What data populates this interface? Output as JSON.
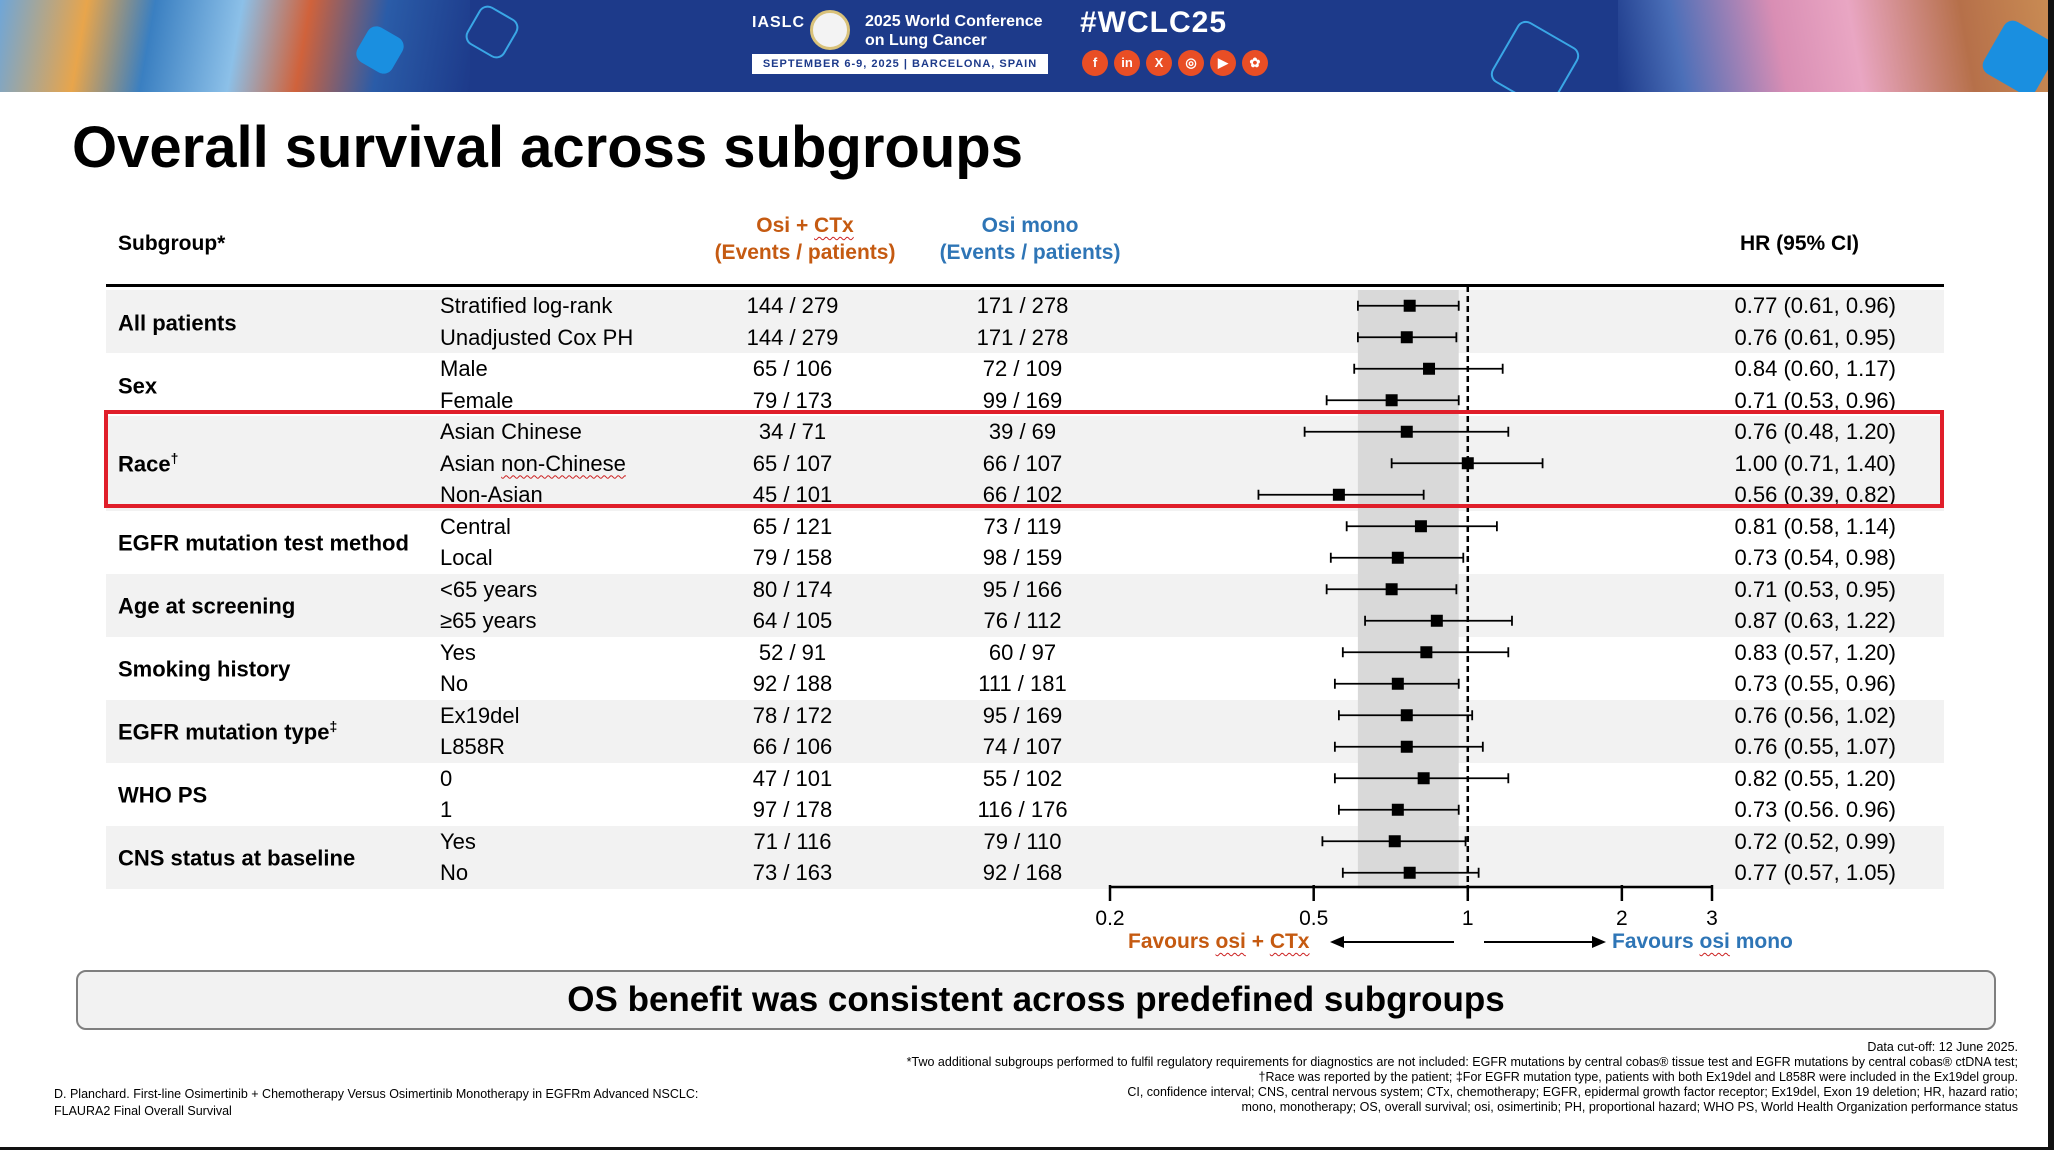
{
  "banner": {
    "org": "IASLC",
    "conference_title": "2025 World Conference on Lung Cancer",
    "conference_date": "SEPTEMBER 6-9, 2025  |  BARCELONA, SPAIN",
    "hashtag": "#WCLC25",
    "social_icons": [
      "facebook-icon",
      "linkedin-icon",
      "x-icon",
      "instagram-icon",
      "youtube-icon",
      "wechat-icon"
    ],
    "social_glyphs": [
      "f",
      "in",
      "X",
      "◎",
      "▶",
      "✿"
    ]
  },
  "title": "Overall survival across subgroups",
  "table_headers": {
    "subgroup": "Subgroup*",
    "osi_ctx_line1_a": "Osi + ",
    "osi_ctx_line1_b": "CTx",
    "osi_ctx_line2": "(Events / patients)",
    "osi_mono_line1": "Osi mono",
    "osi_mono_line2": "(Events / patients)",
    "hr": "HR (95% CI)"
  },
  "groups": [
    {
      "name": "All patients",
      "sup": ""
    },
    {
      "name": "Sex",
      "sup": ""
    },
    {
      "name": "Race",
      "sup": "†"
    },
    {
      "name": "EGFR mutation test method",
      "sup": ""
    },
    {
      "name": "Age at screening",
      "sup": ""
    },
    {
      "name": "Smoking history",
      "sup": ""
    },
    {
      "name": "EGFR mutation type",
      "sup": "‡"
    },
    {
      "name": "WHO PS",
      "sup": ""
    },
    {
      "name": "CNS status at baseline",
      "sup": ""
    }
  ],
  "rows": [
    {
      "label": "Stratified log-rank",
      "osi_ctx": "144 / 279",
      "osi_mono": "171 / 278",
      "hr_text": "0.77 (0.61, 0.96)"
    },
    {
      "label": "Unadjusted Cox PH",
      "osi_ctx": "144 / 279",
      "osi_mono": "171 / 278",
      "hr_text": "0.76 (0.61, 0.95)"
    },
    {
      "label": "Male",
      "osi_ctx": "65 / 106",
      "osi_mono": "72 / 109",
      "hr_text": "0.84 (0.60, 1.17)"
    },
    {
      "label": "Female",
      "osi_ctx": "79 / 173",
      "osi_mono": "99 / 169",
      "hr_text": "0.71 (0.53, 0.96)"
    },
    {
      "label": "Asian Chinese",
      "osi_ctx": "34 / 71",
      "osi_mono": "39 / 69",
      "hr_text": "0.76 (0.48, 1.20)"
    },
    {
      "label": "Asian non-Chinese",
      "osi_ctx": "65 / 107",
      "osi_mono": "66 / 107",
      "hr_text": "1.00 (0.71, 1.40)"
    },
    {
      "label": "Non-Asian",
      "osi_ctx": "45 / 101",
      "osi_mono": "66 / 102",
      "hr_text": "0.56 (0.39, 0.82)"
    },
    {
      "label": "Central",
      "osi_ctx": "65 / 121",
      "osi_mono": "73 / 119",
      "hr_text": "0.81 (0.58, 1.14)"
    },
    {
      "label": "Local",
      "osi_ctx": "79 / 158",
      "osi_mono": "98 / 159",
      "hr_text": "0.73 (0.54, 0.98)"
    },
    {
      "label": "<65 years",
      "osi_ctx": "80 / 174",
      "osi_mono": "95 / 166",
      "hr_text": "0.71 (0.53, 0.95)"
    },
    {
      "label": "≥65 years",
      "osi_ctx": "64 / 105",
      "osi_mono": "76 / 112",
      "hr_text": "0.87 (0.63, 1.22)"
    },
    {
      "label": "Yes",
      "osi_ctx": "52 / 91",
      "osi_mono": "60 / 97",
      "hr_text": "0.83 (0.57, 1.20)"
    },
    {
      "label": "No",
      "osi_ctx": "92 / 188",
      "osi_mono": "111 / 181",
      "hr_text": "0.73 (0.55, 0.96)"
    },
    {
      "label": "Ex19del",
      "osi_ctx": "78 / 172",
      "osi_mono": "95 / 169",
      "hr_text": "0.76 (0.56, 1.02)"
    },
    {
      "label": "L858R",
      "osi_ctx": "66 / 106",
      "osi_mono": "74 / 107",
      "hr_text": "0.76 (0.55, 1.07)"
    },
    {
      "label": "0",
      "osi_ctx": "47 / 101",
      "osi_mono": "55 / 102",
      "hr_text": "0.82 (0.55, 1.20)"
    },
    {
      "label": "1",
      "osi_ctx": "97 / 178",
      "osi_mono": "116 / 176",
      "hr_text": "0.73 (0.56. 0.96)"
    },
    {
      "label": "Yes",
      "osi_ctx": "71 / 116",
      "osi_mono": "79 / 110",
      "hr_text": "0.72 (0.52, 0.99)"
    },
    {
      "label": "No",
      "osi_ctx": "73 / 163",
      "osi_mono": "92 / 168",
      "hr_text": "0.77 (0.57, 1.05)"
    }
  ],
  "chart_data": {
    "type": "scatter",
    "scale": "log",
    "xlim": [
      0.2,
      3
    ],
    "xticks": [
      0.2,
      0.5,
      1,
      2,
      3
    ],
    "xtick_labels": [
      "0.2",
      "0.5",
      "1",
      "2",
      "3"
    ],
    "reference_line": 1,
    "shaded_band_ci": [
      0.61,
      0.96
    ],
    "points": [
      {
        "hr": 0.77,
        "lo": 0.61,
        "hi": 0.96
      },
      {
        "hr": 0.76,
        "lo": 0.61,
        "hi": 0.95
      },
      {
        "hr": 0.84,
        "lo": 0.6,
        "hi": 1.17
      },
      {
        "hr": 0.71,
        "lo": 0.53,
        "hi": 0.96
      },
      {
        "hr": 0.76,
        "lo": 0.48,
        "hi": 1.2
      },
      {
        "hr": 1.0,
        "lo": 0.71,
        "hi": 1.4
      },
      {
        "hr": 0.56,
        "lo": 0.39,
        "hi": 0.82
      },
      {
        "hr": 0.81,
        "lo": 0.58,
        "hi": 1.14
      },
      {
        "hr": 0.73,
        "lo": 0.54,
        "hi": 0.98
      },
      {
        "hr": 0.71,
        "lo": 0.53,
        "hi": 0.95
      },
      {
        "hr": 0.87,
        "lo": 0.63,
        "hi": 1.22
      },
      {
        "hr": 0.83,
        "lo": 0.57,
        "hi": 1.2
      },
      {
        "hr": 0.73,
        "lo": 0.55,
        "hi": 0.96
      },
      {
        "hr": 0.76,
        "lo": 0.56,
        "hi": 1.02
      },
      {
        "hr": 0.76,
        "lo": 0.55,
        "hi": 1.07
      },
      {
        "hr": 0.82,
        "lo": 0.55,
        "hi": 1.2
      },
      {
        "hr": 0.73,
        "lo": 0.56,
        "hi": 0.96
      },
      {
        "hr": 0.72,
        "lo": 0.52,
        "hi": 0.99
      },
      {
        "hr": 0.77,
        "lo": 0.57,
        "hi": 1.05
      }
    ],
    "favours_left_a": "Favours ",
    "favours_left_b": "osi",
    "favours_left_c": " + ",
    "favours_left_d": "CTx",
    "favours_right_a": "Favours ",
    "favours_right_b": "osi",
    "favours_right_c": " mono"
  },
  "conclusion": "OS benefit was consistent across predefined subgroups",
  "footer": {
    "citation_line1": "D. Planchard. First-line Osimertinib + Chemotherapy Versus Osimertinib Monotherapy in EGFRm Advanced NSCLC:",
    "citation_line2": "FLAURA2 Final Overall Survival",
    "cutoff": "Data cut-off: 12 June 2025.",
    "note1": "*Two additional subgroups performed to fulfil regulatory requirements for diagnostics are not included: EGFR mutations by central cobas® tissue test and EGFR mutations by central cobas® ctDNA test;",
    "note2": "†Race was reported by the patient; ‡For EGFR mutation type, patients with both Ex19del and L858R were included in the Ex19del group.",
    "note3": "CI, confidence interval; CNS, central nervous system; CTx, chemotherapy; EGFR, epidermal growth factor receptor; Ex19del, Exon 19 deletion; HR, hazard ratio;",
    "note4": "mono, monotherapy; OS, overall survival; osi, osimertinib; PH, proportional hazard; WHO PS, World Health Organization performance status"
  }
}
